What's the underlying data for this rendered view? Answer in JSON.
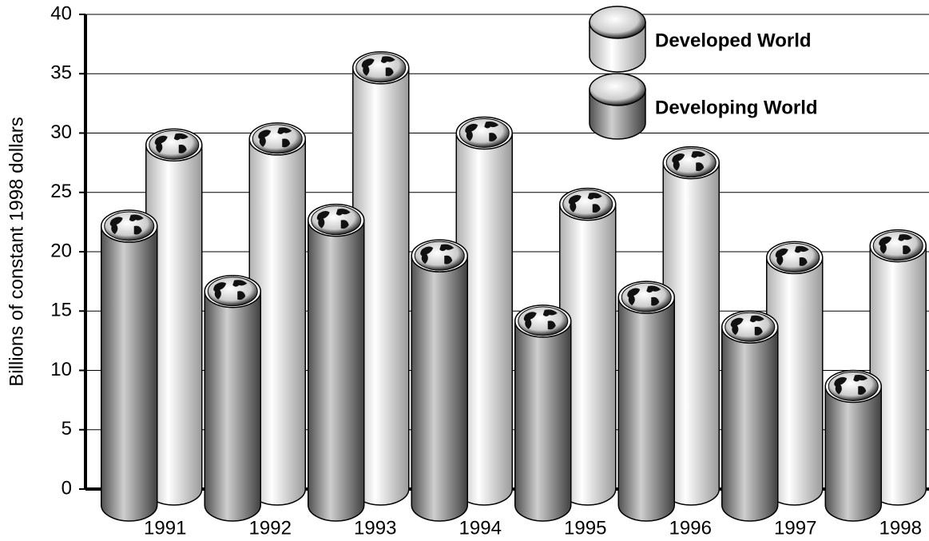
{
  "chart_data": {
    "type": "bar",
    "y_label": "Billions of constant 1998 dollars",
    "categories": [
      "1991",
      "1992",
      "1993",
      "1994",
      "1995",
      "1996",
      "1997",
      "1998"
    ],
    "series": [
      {
        "name": "Developed World",
        "color": "#e8e8e8",
        "values": [
          29,
          29.5,
          35.5,
          30,
          24,
          27.5,
          19.5,
          20.5
        ]
      },
      {
        "name": "Developing World",
        "color": "#808080",
        "values": [
          23.5,
          18,
          24,
          21,
          15.5,
          17.5,
          15,
          10
        ]
      }
    ],
    "ylim": [
      0,
      40
    ],
    "yticks": [
      0,
      5,
      10,
      15,
      20,
      25,
      30,
      35,
      40
    ],
    "grid": true,
    "legend": "upper right"
  }
}
